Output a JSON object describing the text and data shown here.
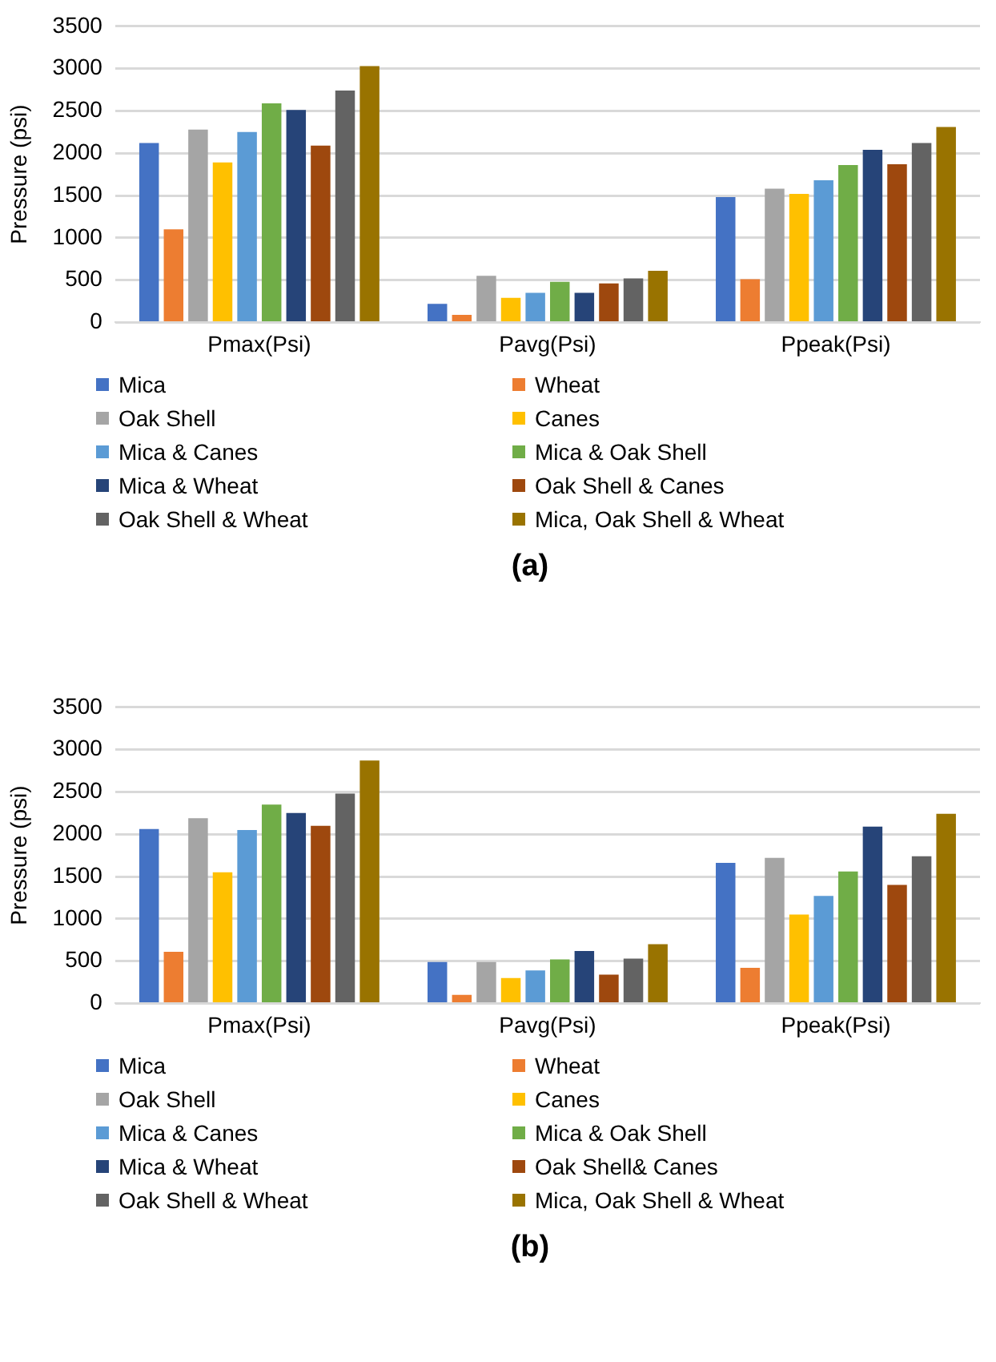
{
  "chart_data": [
    {
      "type": "bar",
      "ylabel": "Pressure (psi)",
      "categories": [
        "Pmax(Psi)",
        "Pavg(Psi)",
        "Ppeak(Psi)"
      ],
      "ylim": [
        0,
        3500
      ],
      "yticks": [
        0,
        500,
        1000,
        1500,
        2000,
        2500,
        3000,
        3500
      ],
      "grid": "y",
      "legend": "bottom",
      "annotations": [
        "(a)"
      ],
      "series": [
        {
          "name": "Mica",
          "color": "#4472c4",
          "values": [
            2120,
            220,
            1480
          ]
        },
        {
          "name": "Wheat",
          "color": "#ed7d31",
          "values": [
            1100,
            90,
            510
          ]
        },
        {
          "name": "Oak Shell",
          "color": "#a5a5a5",
          "values": [
            2280,
            550,
            1580
          ]
        },
        {
          "name": "Canes",
          "color": "#ffc000",
          "values": [
            1890,
            290,
            1520
          ]
        },
        {
          "name": "Mica & Canes",
          "color": "#5b9bd5",
          "values": [
            2250,
            350,
            1680
          ]
        },
        {
          "name": "Mica & Oak Shell",
          "color": "#70ad47",
          "values": [
            2590,
            480,
            1860
          ]
        },
        {
          "name": "Mica & Wheat",
          "color": "#264478",
          "values": [
            2510,
            350,
            2040
          ]
        },
        {
          "name": "Oak Shell & Canes",
          "color": "#9e480e",
          "values": [
            2090,
            460,
            1870
          ]
        },
        {
          "name": "Oak Shell & Wheat",
          "color": "#636363",
          "values": [
            2740,
            520,
            2120
          ]
        },
        {
          "name": "Mica, Oak Shell & Wheat",
          "color": "#997300",
          "values": [
            3030,
            610,
            2310
          ]
        }
      ]
    },
    {
      "type": "bar",
      "ylabel": "Pressure (psi)",
      "categories": [
        "Pmax(Psi)",
        "Pavg(Psi)",
        "Ppeak(Psi)"
      ],
      "ylim": [
        0,
        3500
      ],
      "yticks": [
        0,
        500,
        1000,
        1500,
        2000,
        2500,
        3000,
        3500
      ],
      "grid": "y",
      "legend": "bottom",
      "annotations": [
        "(b)"
      ],
      "series": [
        {
          "name": "Mica",
          "color": "#4472c4",
          "values": [
            2060,
            490,
            1660
          ]
        },
        {
          "name": "Wheat",
          "color": "#ed7d31",
          "values": [
            610,
            100,
            420
          ]
        },
        {
          "name": "Oak Shell",
          "color": "#a5a5a5",
          "values": [
            2190,
            490,
            1720
          ]
        },
        {
          "name": "Canes",
          "color": "#ffc000",
          "values": [
            1550,
            300,
            1050
          ]
        },
        {
          "name": "Mica & Canes",
          "color": "#5b9bd5",
          "values": [
            2050,
            390,
            1270
          ]
        },
        {
          "name": "Mica & Oak Shell",
          "color": "#70ad47",
          "values": [
            2350,
            520,
            1560
          ]
        },
        {
          "name": "Mica & Wheat",
          "color": "#264478",
          "values": [
            2250,
            620,
            2090
          ]
        },
        {
          "name": "Oak Shell& Canes",
          "color": "#9e480e",
          "values": [
            2100,
            340,
            1400
          ]
        },
        {
          "name": "Oak Shell & Wheat",
          "color": "#636363",
          "values": [
            2480,
            530,
            1740
          ]
        },
        {
          "name": "Mica, Oak Shell & Wheat",
          "color": "#997300",
          "values": [
            2870,
            700,
            2240
          ]
        }
      ]
    }
  ]
}
